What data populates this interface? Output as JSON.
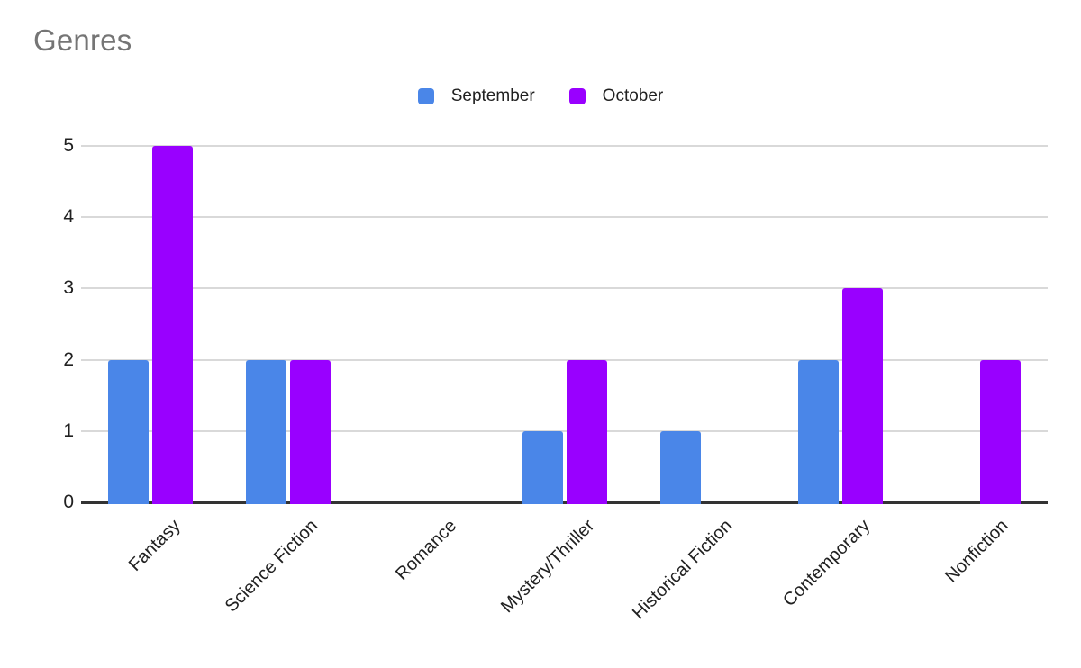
{
  "title": "Genres",
  "legend": {
    "items": [
      {
        "label": "September",
        "color": "#4a86e8"
      },
      {
        "label": "October",
        "color": "#9900ff"
      }
    ]
  },
  "colors": {
    "september": "#4a86e8",
    "october": "#9900ff",
    "title_text": "#757575",
    "axis_text": "#212121",
    "gridline": "#d9d9d9",
    "baseline": "#333333",
    "background": "#ffffff"
  },
  "chart_data": {
    "type": "bar",
    "title": "Genres",
    "categories": [
      "Fantasy",
      "Science Fiction",
      "Romance",
      "Mystery/Thriller",
      "Historical Fiction",
      "Contemporary",
      "Nonfiction"
    ],
    "series": [
      {
        "name": "September",
        "color": "#4a86e8",
        "values": [
          2,
          2,
          0,
          1,
          1,
          2,
          0
        ]
      },
      {
        "name": "October",
        "color": "#9900ff",
        "values": [
          5,
          2,
          0,
          2,
          0,
          3,
          2
        ]
      }
    ],
    "ylim": [
      0,
      5
    ],
    "yticks": [
      0,
      1,
      2,
      3,
      4,
      5
    ],
    "grid": true,
    "legend_position": "top",
    "x_label_rotation": -45,
    "xlabel": "",
    "ylabel": ""
  }
}
